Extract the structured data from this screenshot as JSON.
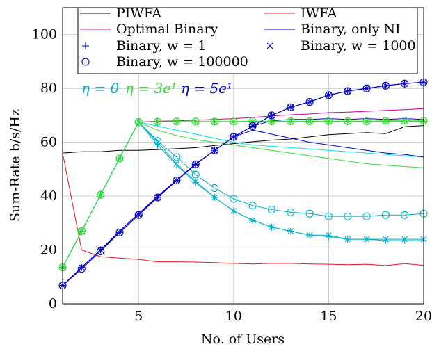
{
  "chart_data": {
    "type": "line",
    "xlabel": "No. of Users",
    "ylabel": "Sum-Rate b/s/Hz",
    "xlim": [
      1,
      20
    ],
    "ylim": [
      0,
      110
    ],
    "xticks": [
      5,
      10,
      15,
      20
    ],
    "yticks": [
      0,
      20,
      40,
      60,
      80,
      100
    ],
    "grid": true,
    "legend_position": "top",
    "x": [
      1,
      2,
      3,
      4,
      5,
      6,
      7,
      8,
      9,
      10,
      11,
      12,
      13,
      14,
      15,
      16,
      17,
      18,
      19,
      20
    ],
    "legend": [
      {
        "label": "PIWFA",
        "color": "#000000",
        "marker": "none"
      },
      {
        "label": "IWFA",
        "color": "#e41a1c",
        "marker": "none"
      },
      {
        "label": "Optimal Binary",
        "color": "#cc0099",
        "marker": "none"
      },
      {
        "label": "Binary, only NI",
        "color": "#0000cc",
        "marker": "none"
      },
      {
        "label": "Binary, w = 1",
        "color": "#0000cc",
        "marker": "plus"
      },
      {
        "label": "Binary, w = 1000",
        "color": "#0000cc",
        "marker": "x"
      },
      {
        "label": "Binary, w = 100000",
        "color": "#0000cc",
        "marker": "circle"
      }
    ],
    "annotations": [
      {
        "text": "η = 0",
        "color": "#00b0c8"
      },
      {
        "text": "η = 3e¹",
        "color": "#33dd33"
      },
      {
        "text": "η = 5e¹",
        "color": "#0000cc"
      }
    ],
    "series": [
      {
        "label": "PIWFA",
        "color": "#000000",
        "marker": "none",
        "values": [
          56,
          56.5,
          56.5,
          57,
          57,
          57.3,
          57.6,
          58,
          58.8,
          59.5,
          60.2,
          60.8,
          61.2,
          62,
          62.8,
          63.2,
          63.6,
          63.2,
          65.8,
          66.2
        ]
      },
      {
        "label": "IWFA",
        "color": "#e41a1c",
        "marker": "none",
        "values": [
          56,
          20,
          17.5,
          17,
          16.5,
          15.6,
          15.6,
          15.5,
          15.3,
          15,
          14.8,
          15,
          15,
          14.8,
          14.7,
          14.5,
          14.7,
          14.2,
          14.9,
          14.3
        ]
      },
      {
        "label": "Optimal Binary",
        "color": "#cc0099",
        "marker": "none",
        "values": [
          13.5,
          27,
          40.5,
          54,
          67.5,
          67.8,
          68,
          68.2,
          68.5,
          68.8,
          69.2,
          69.8,
          70.2,
          70.5,
          71,
          71.2,
          71.5,
          71.8,
          72.1,
          72.5
        ]
      },
      {
        "label": "Binary, only NI",
        "color": "#0000cc",
        "marker": "none",
        "values": [
          6.8,
          13.5,
          20,
          27,
          33.5,
          40,
          46,
          52,
          57,
          62,
          66,
          68,
          68.5,
          68.5,
          68.8,
          68.5,
          68.8,
          68.5,
          68.8,
          68.5
        ]
      },
      {
        "label": "η = 0, w = 1",
        "color": "#00b0c8",
        "marker": "plus",
        "values": [
          13.5,
          27,
          40.5,
          54,
          67.5,
          59,
          51.5,
          45,
          39.5,
          34.5,
          31,
          28.5,
          27,
          25.5,
          25,
          24,
          24,
          23.5,
          23.5,
          23.5
        ]
      },
      {
        "label": "η = 0, w = 1000",
        "color": "#00b0c8",
        "marker": "x",
        "values": [
          13.5,
          27,
          40.5,
          54,
          67.5,
          60,
          52,
          45.5,
          39.5,
          34.5,
          31,
          28.5,
          27,
          25.5,
          25.5,
          24,
          24,
          24,
          24,
          24
        ]
      },
      {
        "label": "η = 0, w = 100000",
        "color": "#00b0c8",
        "marker": "circle",
        "values": [
          13.5,
          27,
          40.5,
          54,
          67.5,
          60.5,
          54.5,
          48,
          43,
          39,
          36.5,
          35,
          34,
          33.5,
          32.5,
          32.5,
          32.5,
          33,
          33,
          33.5
        ]
      },
      {
        "label": "η = 3e¹, w = 1",
        "color": "#33dd33",
        "marker": "plus",
        "values": [
          13.5,
          27,
          40.5,
          54,
          67.5,
          67.6,
          67.6,
          67.6,
          67.6,
          67.6,
          67.6,
          67.6,
          67.6,
          67.7,
          67.7,
          67.7,
          67.7,
          67.8,
          67.8,
          67.8
        ]
      },
      {
        "label": "η = 3e¹, w = 1000",
        "color": "#33dd33",
        "marker": "x",
        "values": [
          13.5,
          27,
          40.5,
          54,
          67.5,
          67.6,
          67.6,
          67.6,
          67.6,
          67.6,
          67.6,
          67.6,
          67.6,
          67.7,
          67.7,
          67.7,
          67.7,
          67.8,
          67.8,
          67.8
        ]
      },
      {
        "label": "η = 3e¹, w = 100000",
        "color": "#33dd33",
        "marker": "circle",
        "values": [
          13.5,
          27,
          40.5,
          54,
          67.5,
          67.6,
          67.7,
          67.7,
          67.7,
          67.7,
          67.8,
          67.8,
          67.8,
          67.8,
          67.8,
          67.8,
          67.8,
          68,
          68,
          68
        ]
      },
      {
        "label": "η = 5e¹, w = 1",
        "color": "#0000cc",
        "marker": "plus",
        "values": [
          6.8,
          13.5,
          20,
          26.5,
          33,
          39.5,
          45.8,
          51.8,
          57,
          62,
          66,
          70,
          73,
          75,
          77.5,
          79,
          80,
          81,
          81.8,
          82.3
        ]
      },
      {
        "label": "η = 5e¹, w = 1000",
        "color": "#0000cc",
        "marker": "x",
        "values": [
          6.8,
          13.5,
          20,
          26.5,
          33,
          39.5,
          45.8,
          51.8,
          57,
          62,
          66,
          70,
          73,
          75,
          77.5,
          79,
          80,
          81,
          81.8,
          82.3
        ]
      },
      {
        "label": "η = 5e¹, w = 100000",
        "color": "#0000cc",
        "marker": "circle",
        "values": [
          6.8,
          13,
          19.5,
          26.5,
          33,
          39.5,
          45.8,
          51.8,
          57,
          62,
          66,
          70,
          73,
          75,
          77.5,
          79,
          80,
          81,
          81.8,
          82.3
        ]
      },
      {
        "label": "η = 0 ref",
        "color": "#00e5ee",
        "marker": "none",
        "values": [
          13.5,
          27,
          40.5,
          54,
          67.5,
          66,
          64.5,
          63,
          61.5,
          60,
          59,
          58.5,
          58,
          57.5,
          57,
          56.5,
          56,
          55.5,
          55,
          54.5
        ]
      },
      {
        "label": "η = 3e¹ ref",
        "color": "#33dd33",
        "marker": "none",
        "values": [
          13.5,
          27,
          40.5,
          54,
          67.5,
          64.5,
          62.5,
          61,
          60,
          59,
          58,
          57,
          56,
          55,
          54,
          53,
          52,
          51.5,
          51,
          50.5
        ]
      },
      {
        "label": "η = 5e¹ ref",
        "color": "#0000cc",
        "marker": "none",
        "values": [
          6.8,
          13.5,
          20,
          27,
          33.5,
          39.5,
          45.8,
          51.8,
          57,
          62,
          64.5,
          63,
          61.5,
          60,
          59,
          58,
          57,
          56,
          55.5,
          54.5
        ]
      }
    ]
  }
}
